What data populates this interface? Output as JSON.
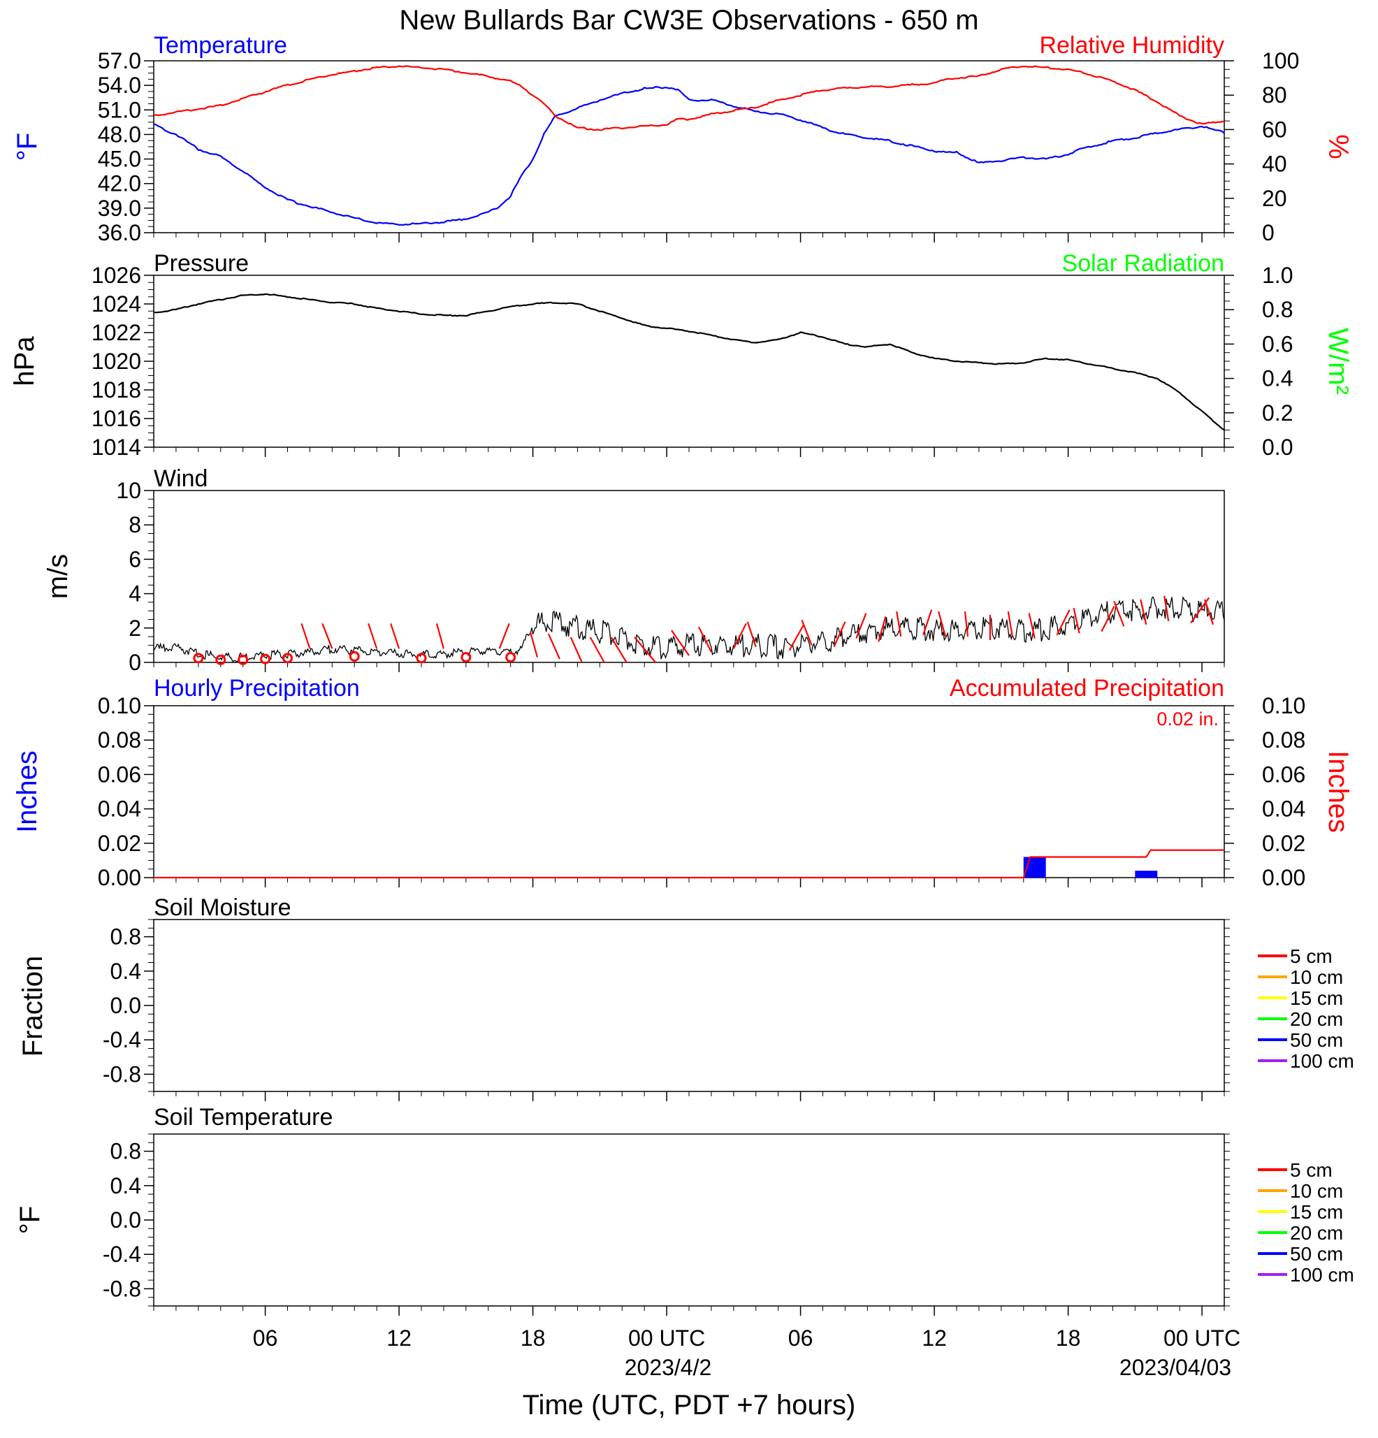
{
  "title": "New Bullards Bar CW3E Observations - 650 m",
  "x_axis": {
    "label": "Time (UTC, PDT +7 hours)",
    "tick_labels": [
      "06",
      "12",
      "18",
      "00 UTC",
      "06",
      "12",
      "18",
      "00 UTC"
    ],
    "date_labels": [
      "2023/4/2",
      "2023/04/03"
    ]
  },
  "colors": {
    "temperature": "#0000ff",
    "humidity": "#ff0000",
    "pressure": "#000000",
    "solar": "#00ff00",
    "wind": "#000000",
    "barb": "#ff0000",
    "hourly": "#0000ff",
    "accum": "#ff0000"
  },
  "legend": {
    "labels": [
      "5 cm",
      "10 cm",
      "15 cm",
      "20 cm",
      "50 cm",
      "100 cm"
    ],
    "colors": [
      "#ff0000",
      "#ffa500",
      "#ffff00",
      "#00ff00",
      "#0000ff",
      "#a020f0"
    ]
  },
  "panels": {
    "temp_rh": {
      "left_title": "Temperature",
      "right_title": "Relative Humidity",
      "ylabel_left": "°F",
      "ylabel_right": "%",
      "left_ticks": [
        "57.0",
        "54.0",
        "51.0",
        "48.0",
        "45.0",
        "42.0",
        "39.0",
        "36.0"
      ],
      "right_ticks": [
        "100",
        "80",
        "60",
        "40",
        "20",
        "0"
      ]
    },
    "pressure": {
      "left_title": "Pressure",
      "right_title": "Solar Radiation",
      "ylabel_left": "hPa",
      "ylabel_right": "W/m²",
      "left_ticks": [
        "1026",
        "1024",
        "1022",
        "1020",
        "1018",
        "1016",
        "1014"
      ],
      "right_ticks": [
        "1.0",
        "0.8",
        "0.6",
        "0.4",
        "0.2",
        "0.0"
      ]
    },
    "wind": {
      "left_title": "Wind",
      "ylabel_left": "m/s",
      "left_ticks": [
        "10",
        "8",
        "6",
        "4",
        "2",
        "0"
      ]
    },
    "precip": {
      "left_title": "Hourly Precipitation",
      "right_title": "Accumulated Precipitation",
      "total_label": "0.02 in.",
      "ylabel_left": "Inches",
      "ylabel_right": "Inches",
      "left_ticks": [
        "0.10",
        "0.08",
        "0.06",
        "0.04",
        "0.02",
        "0.00"
      ],
      "right_ticks": [
        "0.10",
        "0.08",
        "0.06",
        "0.04",
        "0.02",
        "0.00"
      ]
    },
    "soil_moisture": {
      "left_title": "Soil Moisture",
      "ylabel_left": "Fraction",
      "left_ticks": [
        "0.8",
        "0.4",
        "0.0",
        "-0.4",
        "-0.8"
      ]
    },
    "soil_temp": {
      "left_title": "Soil Temperature",
      "ylabel_left": "°F",
      "left_ticks": [
        "0.8",
        "0.4",
        "0.0",
        "-0.4",
        "-0.8"
      ]
    }
  },
  "chart_data": [
    {
      "type": "line",
      "title": "Temperature / Relative Humidity",
      "x_unit": "hours since 2023-04-01 01:00 UTC",
      "xlim": [
        0,
        48
      ],
      "series": [
        {
          "name": "Temperature",
          "axis": "left",
          "ylim": [
            36,
            57
          ],
          "x": [
            0,
            1,
            2,
            3,
            4,
            5,
            6,
            7,
            8,
            9,
            10,
            11,
            12,
            13,
            14,
            15,
            15.5,
            16,
            16.5,
            17,
            17.5,
            18,
            19,
            20,
            21,
            22,
            23,
            23.5,
            24,
            25,
            26,
            27,
            28,
            29,
            30,
            31,
            32,
            33,
            34,
            35,
            35.5,
            36,
            37,
            38,
            39,
            40,
            41,
            41.5,
            42,
            43,
            44,
            45,
            46,
            47,
            48
          ],
          "values": [
            49.2,
            48.0,
            46.2,
            45.3,
            43.5,
            41.5,
            40.0,
            39.2,
            38.5,
            37.8,
            37.2,
            37.0,
            37.1,
            37.3,
            37.7,
            38.5,
            39.2,
            40.5,
            43.0,
            45.0,
            48.0,
            50.2,
            51.2,
            52.2,
            53.0,
            53.6,
            53.8,
            53.5,
            52.2,
            52.2,
            51.5,
            50.8,
            50.5,
            49.8,
            48.8,
            48.0,
            47.6,
            47.2,
            46.6,
            46.0,
            45.8,
            45.8,
            44.5,
            44.8,
            45.2,
            45.0,
            45.6,
            46.2,
            46.5,
            47.2,
            47.6,
            48.2,
            48.6,
            49.0,
            48.2
          ]
        },
        {
          "name": "Relative Humidity",
          "axis": "right",
          "ylim": [
            0,
            100
          ],
          "x": [
            0,
            1,
            2,
            3,
            4,
            5,
            6,
            7,
            8,
            9,
            10,
            11,
            12,
            13,
            14,
            15,
            16,
            16.5,
            17,
            17.5,
            18,
            19,
            20,
            21,
            22,
            23,
            23.5,
            24,
            25,
            26,
            27,
            28,
            29,
            30,
            31,
            32,
            33,
            34,
            35,
            35.5,
            36,
            37,
            38,
            39,
            40,
            41,
            42,
            43,
            44,
            45,
            46,
            47,
            48
          ],
          "values": [
            68,
            70,
            72,
            74,
            78,
            82,
            86,
            89,
            92,
            94,
            96,
            97,
            96,
            95,
            93,
            91,
            88,
            85,
            80,
            75,
            68,
            61,
            60,
            61,
            62,
            63,
            66,
            66,
            69,
            71,
            73,
            77,
            80,
            83,
            84,
            85,
            85,
            86,
            87,
            89,
            90,
            91,
            95,
            97,
            96,
            95,
            92,
            88,
            83,
            76,
            68,
            63,
            65
          ]
        }
      ]
    },
    {
      "type": "line",
      "title": "Pressure",
      "x_unit": "hours since 2023-04-01 01:00 UTC",
      "xlim": [
        0,
        48
      ],
      "series": [
        {
          "name": "Pressure",
          "axis": "left",
          "ylim": [
            1014,
            1026
          ],
          "x": [
            0,
            1,
            2,
            3,
            4,
            5,
            6,
            7,
            8,
            9,
            10,
            11,
            12,
            13,
            14,
            15,
            16,
            17,
            18,
            19,
            20,
            21,
            22,
            23,
            24,
            25,
            26,
            27,
            28,
            29,
            30,
            31,
            32,
            33,
            34,
            35,
            36,
            37,
            38,
            39,
            40,
            41,
            42,
            43,
            44,
            45,
            46,
            47,
            48
          ],
          "values": [
            1023.4,
            1023.6,
            1024.0,
            1024.3,
            1024.6,
            1024.7,
            1024.5,
            1024.3,
            1024.1,
            1024.0,
            1023.7,
            1023.5,
            1023.3,
            1023.2,
            1023.2,
            1023.5,
            1023.8,
            1024.0,
            1024.1,
            1024.0,
            1023.5,
            1023.0,
            1022.5,
            1022.3,
            1022.1,
            1021.8,
            1021.5,
            1021.3,
            1021.5,
            1022.0,
            1021.7,
            1021.2,
            1021.0,
            1021.2,
            1020.6,
            1020.2,
            1020.0,
            1019.9,
            1019.8,
            1019.9,
            1020.2,
            1020.1,
            1019.8,
            1019.5,
            1019.2,
            1018.8,
            1017.8,
            1016.5,
            1015.2
          ]
        }
      ]
    },
    {
      "type": "line",
      "title": "Wind",
      "x_unit": "hours since 2023-04-01 01:00 UTC",
      "xlim": [
        0,
        48
      ],
      "ylim": [
        0,
        10
      ],
      "series": [
        {
          "name": "Wind",
          "x": [
            0,
            1,
            2,
            3,
            4,
            5,
            6,
            7,
            8,
            9,
            10,
            11,
            12,
            13,
            14,
            15,
            16,
            16.5,
            17,
            18,
            19,
            20,
            21,
            22,
            23,
            24,
            25,
            26,
            27,
            28,
            29,
            30,
            31,
            32,
            33,
            34,
            35,
            36,
            37,
            38,
            39,
            40,
            41,
            42,
            43,
            44,
            45,
            46,
            47,
            48
          ],
          "values": [
            0.8,
            0.9,
            0.5,
            0.3,
            0.3,
            0.4,
            0.5,
            0.6,
            0.8,
            0.7,
            0.6,
            0.5,
            0.5,
            0.5,
            0.6,
            0.7,
            0.6,
            0.8,
            2.2,
            2.3,
            2.0,
            1.8,
            1.5,
            1.0,
            0.8,
            1.0,
            1.1,
            1.0,
            1.0,
            0.9,
            1.0,
            1.2,
            1.5,
            1.8,
            2.0,
            2.0,
            1.9,
            1.8,
            2.0,
            2.0,
            1.8,
            1.9,
            2.2,
            2.6,
            3.0,
            3.0,
            3.2,
            3.1,
            3.0,
            3.0
          ]
        }
      ]
    },
    {
      "type": "bar",
      "title": "Precipitation",
      "x_unit": "hours since 2023-04-01 01:00 UTC",
      "xlim": [
        0,
        48
      ],
      "ylim": [
        0,
        0.1
      ],
      "series": [
        {
          "name": "Hourly Precipitation",
          "x": [
            39.5,
            44.5
          ],
          "values": [
            0.012,
            0.004
          ]
        },
        {
          "name": "Accumulated Precipitation",
          "type": "line",
          "x": [
            0,
            39,
            39.3,
            44.5,
            44.7,
            48
          ],
          "values": [
            0,
            0,
            0.012,
            0.012,
            0.016,
            0.016
          ]
        }
      ]
    },
    {
      "type": "line",
      "title": "Soil Moisture",
      "ylim": [
        -1,
        1
      ],
      "series": []
    },
    {
      "type": "line",
      "title": "Soil Temperature",
      "ylim": [
        -1,
        1
      ],
      "series": []
    }
  ]
}
